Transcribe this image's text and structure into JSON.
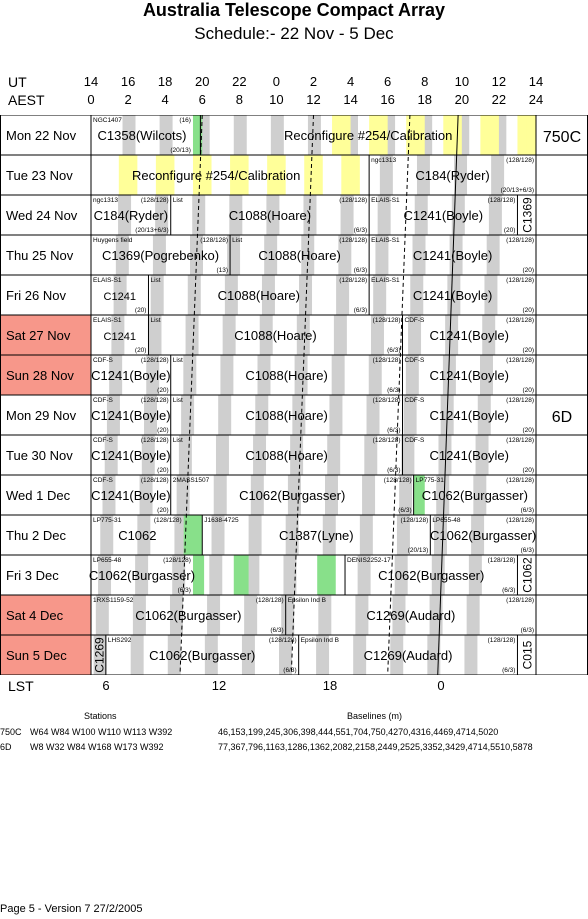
{
  "header": {
    "title": "Australia Telescope Compact Array",
    "subtitle": "Schedule:- 22 Nov - 5  Dec"
  },
  "axes": {
    "ut_label": "UT",
    "aest_label": "AEST",
    "lst_label": "LST",
    "ut_ticks": [
      "14",
      "16",
      "18",
      "20",
      "22",
      "0",
      "2",
      "4",
      "6",
      "8",
      "10",
      "12",
      "14"
    ],
    "aest_ticks": [
      "0",
      "2",
      "4",
      "6",
      "8",
      "10",
      "12",
      "14",
      "16",
      "18",
      "20",
      "22",
      "24"
    ],
    "lst_ticks": [
      "6",
      "12",
      "18",
      "0"
    ]
  },
  "configs": [
    {
      "name": "750C"
    },
    {
      "name": "6D"
    }
  ],
  "days": [
    {
      "label": "Mon  22 Nov",
      "weekend": false,
      "blocks": [
        {
          "program": "C1358(Wilcots)",
          "source": "NGC1407",
          "ratio": "(16)",
          "ratio2": "(20/13)"
        },
        {
          "program": "Reconfigure #254/Calibration"
        }
      ]
    },
    {
      "label": "Tue  23 Nov",
      "weekend": false,
      "blocks": [
        {
          "program": "Reconfigure #254/Calibration"
        },
        {
          "program": "C184(Ryder)",
          "source": "ngc1313",
          "ratio": "(128/128)",
          "ratio2": "(20/13+6/3)"
        }
      ]
    },
    {
      "label": "Wed  24 Nov",
      "weekend": false,
      "blocks": [
        {
          "program": "C184(Ryder)",
          "source": "ngc1313",
          "ratio": "(128/128)",
          "ratio2": "(20/13+6/3)"
        },
        {
          "program": "C1088(Hoare)",
          "source": "List",
          "ratio": "(128/128)",
          "ratio2": "(6/3)"
        },
        {
          "program": "C1241(Boyle)",
          "source": "ELAIS-S1",
          "ratio": "(128/128)",
          "ratio2": "(20)"
        },
        {
          "program": "C1369"
        }
      ]
    },
    {
      "label": "Thu  25 Nov",
      "weekend": false,
      "blocks": [
        {
          "program": "C1369(Pogrebenko)",
          "source": "Huygens field",
          "ratio": "(128/128)",
          "ratio2": "(13)"
        },
        {
          "program": "C1088(Hoare)",
          "source": "List",
          "ratio": "(128/128)",
          "ratio2": "(6/3)"
        },
        {
          "program": "C1241(Boyle)",
          "source": "ELAIS-S1",
          "ratio": "(128/128)",
          "ratio2": "(20)"
        }
      ]
    },
    {
      "label": "Fri   26 Nov",
      "weekend": false,
      "blocks": [
        {
          "program": "C1241",
          "source": "ELAIS-S1",
          "ratio2": "(20)"
        },
        {
          "program": "C1088(Hoare)",
          "source": "List",
          "ratio": "(128/128)",
          "ratio2": "(6/3)"
        },
        {
          "program": "C1241(Boyle)",
          "source": "ELAIS-S1",
          "ratio": "(128/128)",
          "ratio2": "(20)"
        }
      ]
    },
    {
      "label": "Sat   27 Nov",
      "weekend": true,
      "blocks": [
        {
          "program": "C1241",
          "source": "ELAIS-S1",
          "ratio2": "(20)"
        },
        {
          "program": "C1088(Hoare)",
          "source": "List",
          "ratio": "(128/128)",
          "ratio2": "(6/3)"
        },
        {
          "program": "C1241(Boyle)",
          "source": "CDF-S",
          "ratio": "(128/128)",
          "ratio2": "(20)"
        }
      ]
    },
    {
      "label": "Sun   28 Nov",
      "weekend": true,
      "blocks": [
        {
          "program": "C1241(Boyle)",
          "source": "CDF-S",
          "ratio": "(128/128)",
          "ratio2": "(20)"
        },
        {
          "program": "C1088(Hoare)",
          "source": "List",
          "ratio": "(128/128)",
          "ratio2": "(6/3)"
        },
        {
          "program": "C1241(Boyle)",
          "source": "CDF-S",
          "ratio": "(128/128)",
          "ratio2": "(20)"
        }
      ]
    },
    {
      "label": "Mon  29 Nov",
      "weekend": false,
      "blocks": [
        {
          "program": "C1241(Boyle)",
          "source": "CDF-S",
          "ratio": "(128/128)",
          "ratio2": "(20)"
        },
        {
          "program": "C1088(Hoare)",
          "source": "List",
          "ratio": "(128/128)",
          "ratio2": "(6/3)"
        },
        {
          "program": "C1241(Boyle)",
          "source": "CDF-S",
          "ratio": "(128/128)",
          "ratio2": "(20)"
        }
      ]
    },
    {
      "label": "Tue   30 Nov",
      "weekend": false,
      "blocks": [
        {
          "program": "C1241(Boyle)",
          "source": "CDF-S",
          "ratio": "(128/128)",
          "ratio2": "(20)"
        },
        {
          "program": "C1088(Hoare)",
          "source": "List",
          "ratio": "(128/128)",
          "ratio2": "(6/3)"
        },
        {
          "program": "C1241(Boyle)",
          "source": "CDF-S",
          "ratio": "(128/128)",
          "ratio2": "(20)"
        }
      ]
    },
    {
      "label": "Wed   1  Dec",
      "weekend": false,
      "blocks": [
        {
          "program": "C1241(Boyle)",
          "source": "CDF-S",
          "ratio": "(128/128)",
          "ratio2": "(20)"
        },
        {
          "program": "C1062(Burgasser)",
          "source": "2MASS1507",
          "ratio": "(128/128)",
          "ratio2": "(6/3)"
        },
        {
          "program": "C1062(Burgasser)",
          "source": "LP775-31",
          "ratio": "(128/128)",
          "ratio2": "(6/3)"
        }
      ]
    },
    {
      "label": "Thu   2  Dec",
      "weekend": false,
      "blocks": [
        {
          "program": "C1062",
          "source": "LP775-31",
          "ratio": "(128/128)"
        },
        {
          "program": "C1387(Lyne)",
          "source": "J1638-4725",
          "ratio": "(128/128)",
          "ratio2": "(20/13)"
        },
        {
          "program": "C1062(Burgasser)",
          "source": "LP655-48",
          "ratio": "(128/128)",
          "ratio2": "(6/3)"
        }
      ]
    },
    {
      "label": "Fri    3  Dec",
      "weekend": false,
      "blocks": [
        {
          "program": "C1062(Burgasser)",
          "source": "LP655-48",
          "ratio": "(128/128)",
          "ratio2": "(6/3)"
        },
        {
          "program": "C1062(Burgasser)",
          "source": "DENIS2252-17",
          "ratio": "(128/128)",
          "ratio2": "(6/3)"
        },
        {
          "program": "C1062"
        }
      ]
    },
    {
      "label": "Sat    4  Dec",
      "weekend": true,
      "blocks": [
        {
          "program": "C1062(Burgasser)",
          "source": "1RXS1159-52",
          "ratio": "(128/128)",
          "ratio2": "(6/3)"
        },
        {
          "program": "C1269(Audard)",
          "source": "Epsilon Ind B",
          "ratio": "(128/128)",
          "ratio2": "(6/3)"
        }
      ]
    },
    {
      "label": "Sun    5  Dec",
      "weekend": true,
      "blocks": [
        {
          "program": "C1269"
        },
        {
          "program": "C1062(Burgasser)",
          "source": "LHS292",
          "ratio": "(128/128)",
          "ratio2": "(6/3)"
        },
        {
          "program": "C1269(Audard)",
          "source": "Epsilon Ind B",
          "ratio": "(128/128)",
          "ratio2": "(6/3)"
        },
        {
          "program": "C015"
        }
      ]
    }
  ],
  "footer_table": {
    "stations_header": "Stations",
    "baselines_header": "Baselines (m)",
    "rows": [
      {
        "config": "750C",
        "stations": "W64 W84 W100 W110 W113 W392",
        "baselines": "46,153,199,245,306,398,444,551,704,750,4270,4316,4469,4714,5020"
      },
      {
        "config": "6D",
        "stations": "W8 W32 W84 W168 W173 W392",
        "baselines": "77,367,796,1163,1286,1362,2082,2158,2449,2525,3352,3429,4714,5510,5878"
      }
    ]
  },
  "page_footer": "Page 5 - Version 7  27/2/2005",
  "colors": {
    "weekend": "#f7978a",
    "grey_band": "#cfcfcf",
    "yellow_band": "#ffff99",
    "green_band": "#88e08a"
  }
}
